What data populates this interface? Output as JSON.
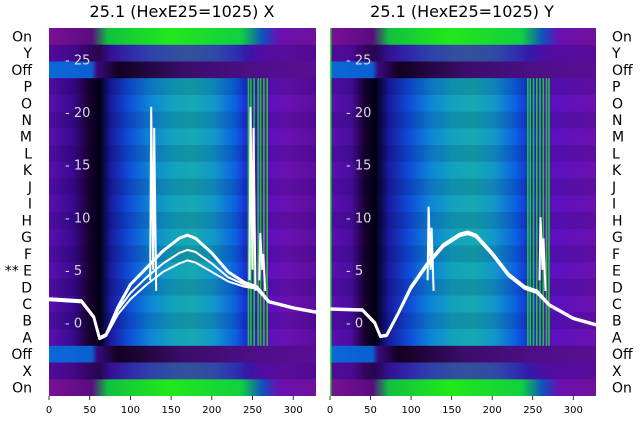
{
  "chart_data": [
    {
      "type": "heatmap",
      "title": "25.1 (HexE25=1025) X",
      "xlim": [
        0,
        328
      ],
      "xticks": [
        0,
        50,
        100,
        150,
        200,
        250,
        300
      ],
      "ylim": [
        -7,
        28
      ],
      "yticks": [
        0,
        5,
        10,
        15,
        20,
        25
      ],
      "ytick_labels": [
        "- 0",
        "- 5",
        "- 10",
        "- 15",
        "- 20",
        "- 25"
      ],
      "row_labels": [
        "On",
        "X",
        "Off",
        "A",
        "B",
        "C",
        "D",
        "** E",
        "F",
        "G",
        "H",
        "I",
        "J",
        "K",
        "L",
        "M",
        "N",
        "O",
        "P",
        "Off",
        "Y",
        "On"
      ],
      "row_label_side": "left",
      "noisy_spikes": [
        {
          "x": 128,
          "y_top": 20.5
        },
        {
          "x": 250,
          "y_top": 20.5
        },
        {
          "x": 262,
          "y_top": 8.5
        }
      ],
      "series": [
        {
          "x": [
            0,
            40,
            55,
            62,
            70,
            85,
            100,
            120,
            140,
            160,
            170,
            180,
            200,
            220,
            240,
            255,
            270,
            300,
            328
          ],
          "values": [
            2.2,
            2.0,
            0.5,
            -1.5,
            -1.2,
            1.5,
            3.6,
            5.2,
            6.8,
            8.0,
            8.3,
            8.0,
            6.6,
            4.8,
            3.8,
            3.4,
            2.0,
            1.4,
            1.0
          ]
        },
        {
          "x": [
            0,
            40,
            55,
            62,
            70,
            85,
            100,
            120,
            140,
            160,
            170,
            180,
            200,
            220,
            240,
            255,
            270,
            300,
            328
          ],
          "values": [
            2.3,
            2.1,
            0.6,
            -1.4,
            -1.1,
            1.2,
            2.8,
            4.3,
            5.6,
            6.6,
            6.9,
            6.7,
            5.6,
            4.3,
            3.6,
            3.3,
            2.0,
            1.4,
            1.0
          ]
        },
        {
          "x": [
            0,
            40,
            55,
            62,
            70,
            85,
            100,
            120,
            140,
            160,
            170,
            180,
            200,
            220,
            240,
            255,
            270,
            300,
            328
          ],
          "values": [
            2.1,
            1.9,
            0.4,
            -1.6,
            -1.3,
            0.8,
            2.2,
            3.6,
            4.8,
            5.6,
            5.9,
            5.7,
            4.8,
            3.9,
            3.4,
            3.2,
            1.9,
            1.3,
            0.9
          ]
        }
      ]
    },
    {
      "type": "heatmap",
      "title": "25.1 (HexE25=1025) Y",
      "xlim": [
        0,
        328
      ],
      "xticks": [
        0,
        50,
        100,
        150,
        200,
        250,
        300
      ],
      "ylim": [
        -7,
        28
      ],
      "yticks": [
        0,
        5,
        10,
        15,
        20,
        25
      ],
      "ytick_labels": [
        "- 0",
        "- 5",
        "- 10",
        "- 15",
        "- 20",
        "- 25"
      ],
      "row_labels": [
        "On",
        "X",
        "Off",
        "A",
        "B",
        "C",
        "D",
        "E",
        "F",
        "G",
        "H",
        "I",
        "J",
        "K",
        "L",
        "M",
        "N",
        "O",
        "P",
        "Off",
        "Y",
        "On"
      ],
      "row_label_side": "right",
      "noisy_spikes": [
        {
          "x": 124,
          "y_top": 11
        },
        {
          "x": 262,
          "y_top": 10
        }
      ],
      "series": [
        {
          "x": [
            0,
            40,
            55,
            62,
            70,
            85,
            100,
            120,
            140,
            160,
            170,
            180,
            200,
            220,
            240,
            255,
            270,
            300,
            328
          ],
          "values": [
            1.3,
            1.2,
            0.0,
            -1.3,
            -1.2,
            1.0,
            3.4,
            5.6,
            7.4,
            8.4,
            8.6,
            8.3,
            6.6,
            4.6,
            3.4,
            3.0,
            1.7,
            0.4,
            -0.2
          ]
        },
        {
          "x": [
            0,
            40,
            55,
            62,
            70,
            85,
            100,
            120,
            140,
            160,
            170,
            180,
            200,
            220,
            240,
            255,
            270,
            300,
            328
          ],
          "values": [
            1.2,
            1.1,
            -0.1,
            -1.4,
            -1.3,
            0.9,
            3.2,
            5.4,
            7.2,
            8.2,
            8.4,
            8.1,
            6.4,
            4.4,
            3.2,
            2.8,
            1.6,
            0.3,
            -0.3
          ]
        }
      ]
    }
  ]
}
